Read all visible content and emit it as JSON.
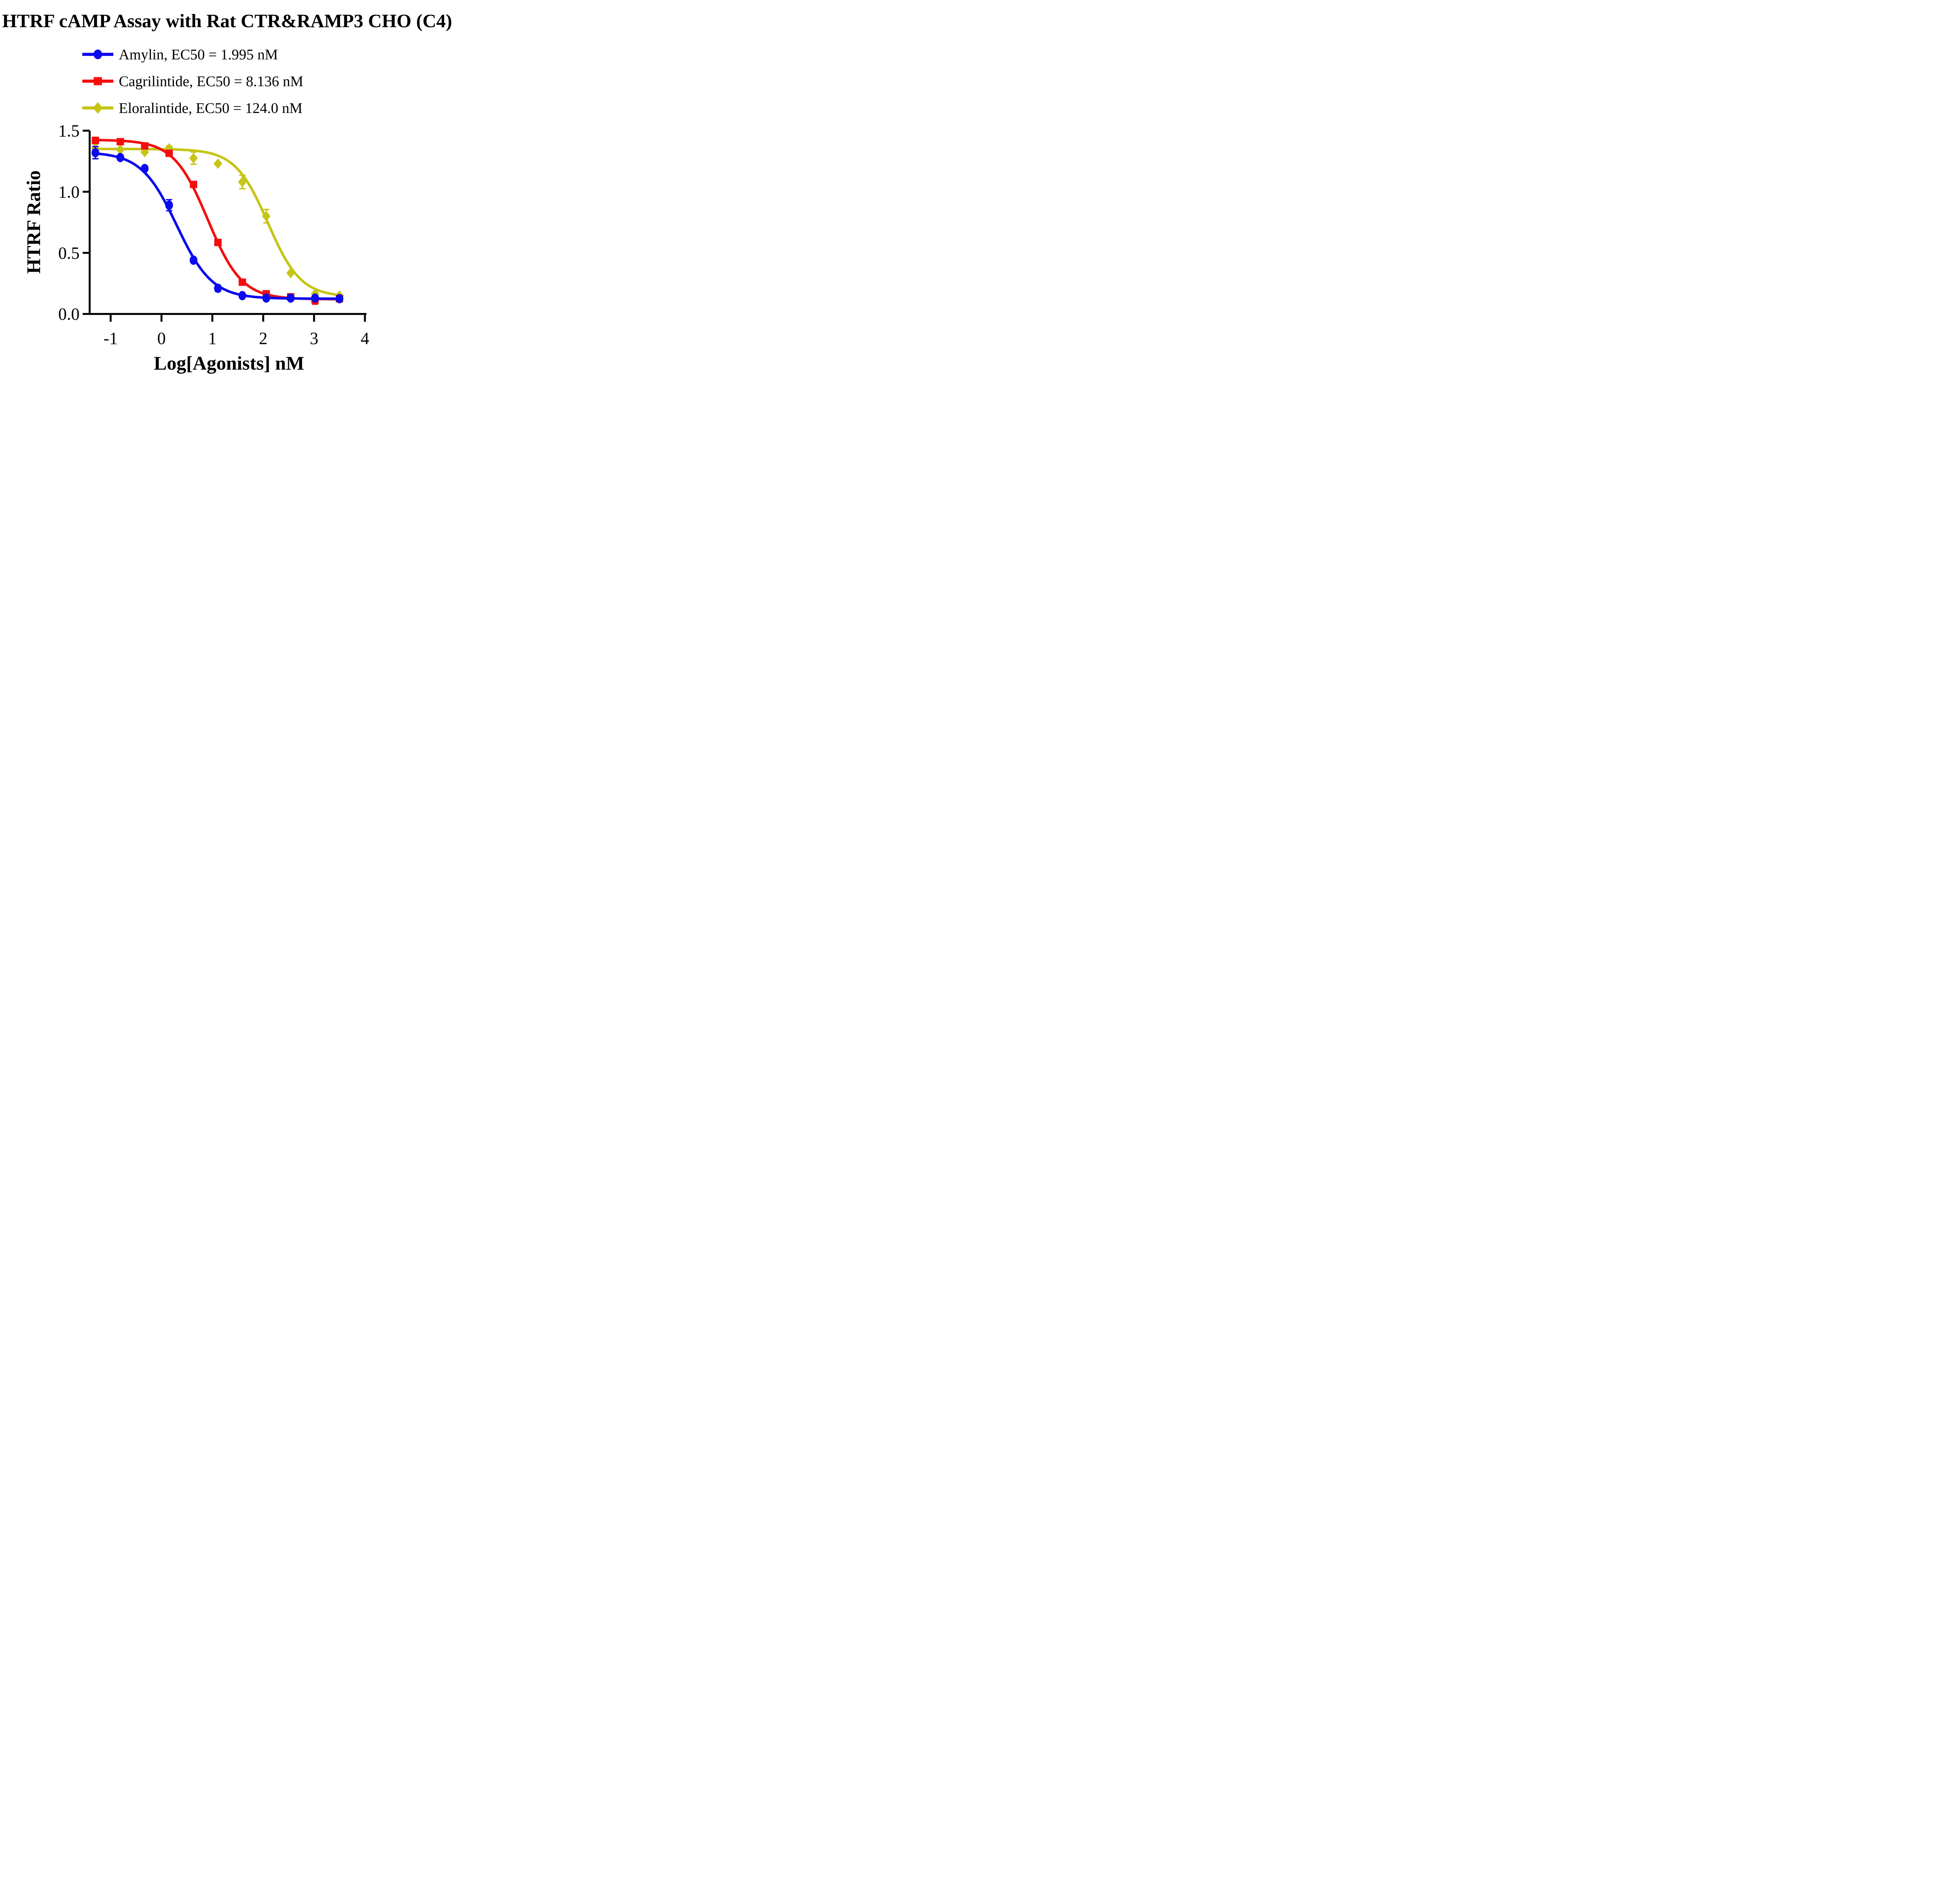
{
  "title": "HTRF cAMP Assay with Rat CTR&RAMP3 CHO (C4)",
  "legend": {
    "position": "top-left",
    "items": [
      {
        "label": "Amylin, EC50 = 1.995 nM",
        "color": "#0A0AF0",
        "marker": "circle"
      },
      {
        "label": "Cagrilintide, EC50 = 8.136 nM",
        "color": "#F50D0D",
        "marker": "square"
      },
      {
        "label": "Eloralintide, EC50 = 124.0 nM",
        "color": "#C5C514",
        "marker": "diamond"
      }
    ]
  },
  "axes": {
    "x": {
      "title": "Log[Agonists] nM",
      "ticks": [
        {
          "value": -1,
          "label": "-1"
        },
        {
          "value": 0,
          "label": "0"
        },
        {
          "value": 1,
          "label": "1"
        },
        {
          "value": 2,
          "label": "2"
        },
        {
          "value": 3,
          "label": "3"
        },
        {
          "value": 4,
          "label": "4"
        }
      ],
      "range": [
        -1.41,
        4.03
      ]
    },
    "y": {
      "title": "HTRF Ratio",
      "ticks": [
        {
          "value": 0.0,
          "label": "0.0"
        },
        {
          "value": 0.5,
          "label": "0.5"
        },
        {
          "value": 1.0,
          "label": "1.0"
        },
        {
          "value": 1.5,
          "label": "1.5"
        }
      ],
      "range": [
        0,
        1.5
      ]
    }
  },
  "chart_data": {
    "type": "line",
    "title": "HTRF cAMP Assay with Rat CTR&RAMP3 CHO (C4)",
    "xlabel": "Log[Agonists] nM",
    "ylabel": "HTRF Ratio",
    "xlim": [
      -1.41,
      4.03
    ],
    "ylim": [
      0,
      1.5
    ],
    "grid": false,
    "legend_position": "top-left",
    "x_units": "log10 of agonist concentration (nM)",
    "x": [
      -1.3,
      -0.81,
      -0.33,
      0.15,
      0.63,
      1.11,
      1.59,
      2.06,
      2.54,
      3.02,
      3.5
    ],
    "series": [
      {
        "name": "Amylin",
        "ec50_label": "EC50 = 1.995 nM",
        "ec50_nM": 1.995,
        "color": "#0A0AF0",
        "marker": "circle",
        "y": [
          1.32,
          1.28,
          1.19,
          0.89,
          0.44,
          0.21,
          0.15,
          0.13,
          0.13,
          0.13,
          0.125
        ],
        "err": [
          0.05,
          0,
          0,
          0.045,
          0.02,
          0.025,
          0,
          0,
          0,
          0,
          0
        ],
        "fit": {
          "top": 1.325,
          "bottom": 0.125,
          "logEC50": 0.3,
          "hill": 1.25
        }
      },
      {
        "name": "Cagrilintide",
        "ec50_label": "EC50 = 8.136 nM",
        "ec50_nM": 8.136,
        "color": "#F50D0D",
        "marker": "square",
        "y": [
          1.42,
          1.41,
          1.375,
          1.315,
          1.06,
          0.585,
          0.26,
          0.165,
          0.14,
          0.115,
          0.125
        ],
        "err": [
          0.025,
          0,
          0,
          0,
          0,
          0,
          0.02,
          0,
          0,
          0.035,
          0
        ],
        "fit": {
          "top": 1.425,
          "bottom": 0.12,
          "logEC50": 0.9104,
          "hill": 1.3
        }
      },
      {
        "name": "Eloralintide",
        "ec50_label": "EC50 = 124.0 nM",
        "ec50_nM": 124.0,
        "color": "#C5C514",
        "marker": "diamond",
        "y": [
          1.355,
          1.345,
          1.325,
          1.355,
          1.275,
          1.23,
          1.08,
          0.8,
          0.335,
          0.165,
          0.15
        ],
        "err": [
          0.035,
          0,
          0,
          0.02,
          0.05,
          0,
          0.055,
          0.055,
          0,
          0,
          0
        ],
        "fit": {
          "top": 1.35,
          "bottom": 0.14,
          "logEC50": 2.0934,
          "hill": 1.35
        }
      }
    ]
  }
}
